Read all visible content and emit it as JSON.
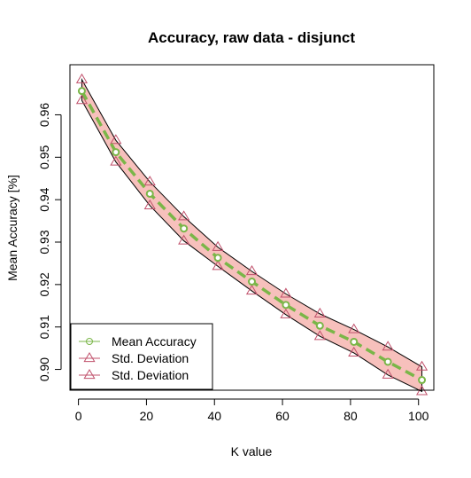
{
  "chart_data": {
    "type": "line",
    "title": "Accuracy, raw data - disjunct",
    "xlabel": "K value",
    "ylabel": "Mean Accuracy [%]",
    "xlim": [
      -2.5,
      104.5
    ],
    "ylim": [
      0.8951,
      0.9718
    ],
    "x_ticks": [
      0,
      20,
      40,
      60,
      80,
      100
    ],
    "y_ticks": [
      0.9,
      0.91,
      0.92,
      0.93,
      0.94,
      0.95,
      0.96
    ],
    "y_tick_labels": [
      "0.90",
      "0.91",
      "0.92",
      "0.93",
      "0.94",
      "0.95",
      "0.96"
    ],
    "x": [
      1,
      11,
      21,
      31,
      41,
      51,
      61,
      71,
      81,
      91,
      101
    ],
    "series": [
      {
        "name": "Mean Accuracy",
        "values": [
          0.9656,
          0.9512,
          0.9414,
          0.9332,
          0.9263,
          0.9207,
          0.9152,
          0.9103,
          0.9065,
          0.9018,
          0.8975
        ],
        "color": "#7ab648",
        "marker": "circle"
      },
      {
        "name": "Std. Deviation",
        "values": [
          0.9683,
          0.954,
          0.9442,
          0.936,
          0.9288,
          0.9231,
          0.9178,
          0.9131,
          0.9094,
          0.9053,
          0.9006
        ],
        "color": "#c0506b",
        "marker": "triangle"
      },
      {
        "name": "Std. Deviation",
        "values": [
          0.9634,
          0.9489,
          0.9386,
          0.9303,
          0.9243,
          0.9185,
          0.9129,
          0.9078,
          0.9039,
          0.8987,
          0.8948
        ],
        "color": "#c0506b",
        "marker": "triangle"
      }
    ],
    "band_fill": "#f7c0bc",
    "grid": false,
    "legend_position": "bottom-left"
  }
}
